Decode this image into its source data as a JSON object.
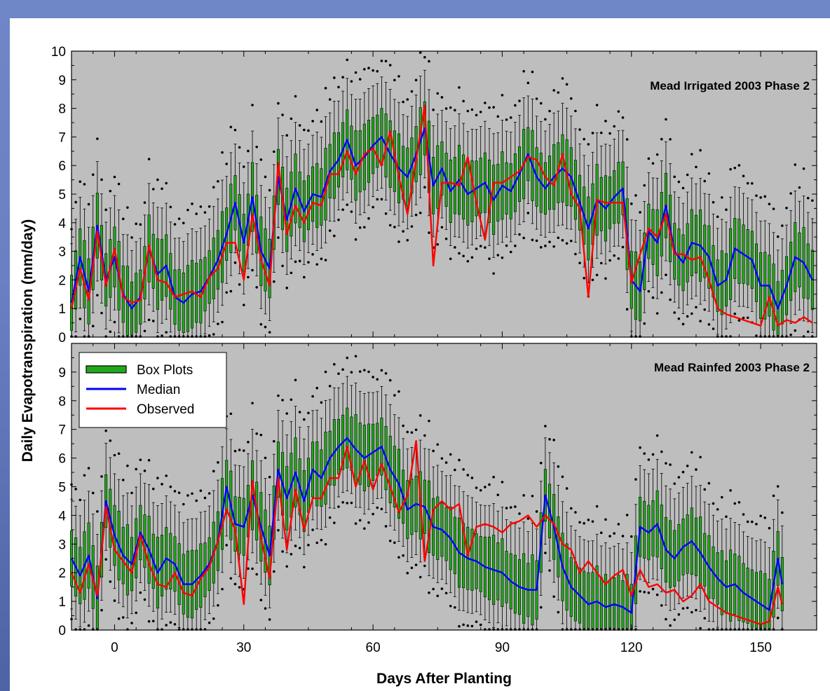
{
  "chart_data": [
    {
      "type": "box",
      "title": "Mead Irrigated 2003 Phase 2",
      "xlabel": "Days After Planting",
      "ylabel": "Daily Evapotranspiration (mm/day)",
      "xlim": [
        -10,
        163
      ],
      "ylim": [
        0,
        10
      ],
      "x_ticks": [
        0,
        30,
        60,
        90,
        120,
        150
      ],
      "y_ticks": [
        0,
        1,
        2,
        3,
        4,
        5,
        6,
        7,
        8,
        9,
        10
      ],
      "grid": false,
      "background": "#bebebe",
      "series": [
        {
          "name": "Box Plots",
          "color": "#22a81c",
          "style": "box"
        },
        {
          "name": "Median",
          "color": "#0000ff",
          "x": [
            -10,
            -8,
            -6,
            -4,
            -2,
            0,
            2,
            4,
            6,
            8,
            10,
            12,
            14,
            16,
            18,
            20,
            22,
            24,
            26,
            28,
            30,
            32,
            34,
            36,
            38,
            40,
            42,
            44,
            46,
            48,
            50,
            52,
            54,
            56,
            58,
            60,
            62,
            64,
            66,
            68,
            70,
            72,
            74,
            76,
            78,
            80,
            82,
            84,
            86,
            88,
            90,
            92,
            94,
            96,
            98,
            100,
            102,
            104,
            106,
            108,
            110,
            112,
            114,
            116,
            118,
            120,
            122,
            124,
            126,
            128,
            130,
            132,
            134,
            136,
            138,
            140,
            142,
            144,
            146,
            148,
            150,
            152,
            154,
            156,
            158,
            160,
            162
          ],
          "values": [
            1.2,
            2.8,
            1.6,
            3.9,
            2.0,
            2.8,
            1.5,
            1.0,
            1.4,
            3.1,
            2.2,
            2.5,
            1.4,
            1.2,
            1.5,
            1.6,
            2.1,
            2.7,
            3.6,
            4.7,
            3.3,
            4.9,
            3.0,
            2.4,
            5.6,
            4.1,
            5.2,
            4.4,
            5.0,
            4.9,
            5.8,
            6.2,
            6.9,
            6.0,
            6.3,
            6.7,
            7.0,
            6.4,
            5.9,
            5.6,
            6.4,
            7.3,
            5.3,
            5.9,
            5.1,
            5.5,
            5.0,
            5.2,
            5.4,
            4.8,
            5.3,
            5.1,
            5.7,
            6.4,
            5.6,
            5.2,
            5.6,
            5.9,
            5.6,
            4.7,
            3.8,
            4.8,
            4.5,
            4.9,
            5.2,
            2.0,
            1.6,
            3.7,
            3.3,
            4.6,
            3.0,
            2.6,
            3.3,
            3.2,
            2.8,
            1.8,
            2.0,
            3.1,
            2.9,
            2.7,
            1.8,
            1.8,
            1.0,
            1.8,
            2.8,
            2.6,
            2.0
          ]
        },
        {
          "name": "Observed",
          "color": "#ff0000",
          "x": [
            -10,
            -8,
            -6,
            -4,
            -2,
            0,
            2,
            4,
            6,
            8,
            10,
            12,
            14,
            16,
            18,
            20,
            22,
            24,
            26,
            28,
            30,
            32,
            34,
            36,
            38,
            40,
            42,
            44,
            46,
            48,
            50,
            52,
            54,
            56,
            58,
            60,
            62,
            64,
            66,
            68,
            70,
            72,
            74,
            76,
            78,
            80,
            82,
            84,
            86,
            88,
            90,
            92,
            94,
            96,
            98,
            100,
            102,
            104,
            106,
            108,
            110,
            112,
            114,
            116,
            118,
            120,
            122,
            124,
            126,
            128,
            130,
            132,
            134,
            136,
            138,
            140,
            142,
            144,
            146,
            148,
            150,
            152,
            154,
            156,
            158,
            160,
            162
          ],
          "values": [
            1.0,
            2.4,
            1.3,
            3.7,
            1.8,
            3.1,
            1.4,
            1.2,
            1.3,
            3.2,
            2.0,
            1.9,
            1.4,
            1.5,
            1.6,
            1.4,
            2.1,
            2.4,
            3.3,
            3.3,
            2.0,
            4.3,
            2.7,
            1.8,
            6.1,
            3.6,
            4.6,
            4.0,
            4.7,
            4.6,
            5.7,
            5.7,
            6.5,
            5.7,
            6.4,
            6.6,
            6.0,
            7.2,
            5.6,
            4.3,
            6.2,
            8.1,
            2.5,
            5.4,
            5.4,
            5.3,
            6.3,
            4.7,
            3.4,
            5.4,
            5.4,
            5.6,
            5.8,
            6.3,
            6.2,
            5.6,
            5.3,
            6.4,
            5.0,
            4.5,
            1.4,
            4.8,
            4.7,
            4.7,
            4.7,
            1.9,
            2.9,
            3.8,
            3.5,
            4.3,
            2.9,
            2.9,
            2.7,
            2.8,
            2.0,
            1.0,
            0.8,
            0.7,
            0.6,
            0.5,
            0.4,
            1.4,
            0.4,
            0.6,
            0.5,
            0.7,
            0.5
          ]
        }
      ]
    },
    {
      "type": "box",
      "title": "Mead Rainfed 2003 Phase 2",
      "xlabel": "Days After Planting",
      "ylabel": "Daily Evapotranspiration (mm/day)",
      "xlim": [
        -10,
        163
      ],
      "ylim": [
        0,
        10
      ],
      "x_ticks": [
        0,
        30,
        60,
        90,
        120,
        150
      ],
      "y_ticks": [
        0,
        1,
        2,
        3,
        4,
        5,
        6,
        7,
        8,
        9
      ],
      "grid": false,
      "legend_position": "top-left",
      "background": "#bebebe",
      "series": [
        {
          "name": "Box Plots",
          "color": "#22a81c",
          "style": "box"
        },
        {
          "name": "Median",
          "color": "#0000ff",
          "x": [
            -10,
            -8,
            -6,
            -4,
            -2,
            0,
            2,
            4,
            6,
            8,
            10,
            12,
            14,
            16,
            18,
            20,
            22,
            24,
            26,
            28,
            30,
            32,
            34,
            36,
            38,
            40,
            42,
            44,
            46,
            48,
            50,
            52,
            54,
            56,
            58,
            60,
            62,
            64,
            66,
            68,
            70,
            72,
            74,
            76,
            78,
            80,
            82,
            84,
            86,
            88,
            90,
            92,
            94,
            96,
            98,
            100,
            102,
            104,
            106,
            108,
            110,
            112,
            114,
            116,
            118,
            120,
            122,
            124,
            126,
            128,
            130,
            132,
            134,
            136,
            138,
            140,
            142,
            144,
            146,
            148,
            150,
            152,
            154,
            155
          ],
          "values": [
            2.5,
            1.9,
            2.6,
            1.1,
            4.5,
            3.3,
            2.6,
            2.3,
            3.4,
            2.8,
            2.0,
            2.5,
            2.3,
            1.6,
            1.6,
            1.9,
            2.3,
            3.1,
            5.0,
            3.7,
            3.6,
            4.7,
            3.6,
            2.6,
            5.6,
            4.6,
            5.5,
            4.5,
            5.6,
            5.3,
            6.0,
            6.4,
            6.7,
            6.3,
            6.0,
            6.2,
            6.4,
            5.6,
            5.1,
            4.2,
            4.4,
            4.3,
            3.6,
            3.5,
            3.2,
            2.7,
            2.5,
            2.4,
            2.2,
            2.1,
            2.0,
            1.7,
            1.5,
            1.4,
            1.4,
            4.7,
            3.6,
            2.2,
            1.5,
            1.2,
            0.9,
            1.0,
            0.8,
            0.9,
            0.8,
            0.6,
            3.6,
            3.4,
            3.7,
            2.8,
            2.5,
            2.9,
            3.1,
            2.7,
            2.2,
            1.8,
            1.5,
            1.6,
            1.3,
            1.1,
            0.9,
            0.7,
            2.5,
            1.6
          ]
        },
        {
          "name": "Observed",
          "color": "#ff0000",
          "x": [
            -10,
            -8,
            -6,
            -4,
            -2,
            0,
            2,
            4,
            6,
            8,
            10,
            12,
            14,
            16,
            18,
            20,
            22,
            24,
            26,
            28,
            30,
            32,
            34,
            36,
            38,
            40,
            42,
            44,
            46,
            48,
            50,
            52,
            54,
            56,
            58,
            60,
            62,
            64,
            66,
            68,
            70,
            72,
            74,
            76,
            78,
            80,
            82,
            84,
            86,
            88,
            90,
            92,
            94,
            96,
            98,
            100,
            102,
            104,
            106,
            108,
            110,
            112,
            114,
            116,
            118,
            120,
            122,
            124,
            126,
            128,
            130,
            132,
            134,
            136,
            138,
            140,
            142,
            144,
            146,
            148,
            150,
            152,
            154,
            155
          ],
          "values": [
            2.0,
            1.3,
            2.3,
            1.2,
            4.3,
            2.8,
            2.4,
            2.0,
            3.3,
            2.3,
            1.6,
            1.5,
            2.0,
            1.3,
            1.2,
            1.8,
            2.2,
            3.1,
            4.2,
            3.5,
            0.9,
            5.2,
            3.2,
            1.8,
            5.3,
            2.8,
            4.9,
            3.5,
            4.6,
            4.6,
            5.3,
            5.3,
            6.4,
            5.0,
            5.9,
            4.9,
            5.8,
            5.0,
            4.1,
            4.7,
            6.6,
            2.4,
            4.2,
            4.5,
            4.2,
            4.4,
            2.6,
            3.6,
            3.7,
            3.6,
            3.4,
            3.7,
            3.8,
            4.0,
            3.6,
            4.0,
            3.7,
            3.0,
            2.8,
            2.0,
            2.4,
            2.0,
            1.6,
            1.9,
            2.1,
            1.2,
            2.1,
            1.5,
            1.6,
            1.3,
            1.4,
            1.0,
            1.2,
            1.6,
            1.0,
            0.8,
            0.6,
            0.5,
            0.4,
            0.3,
            0.2,
            0.3,
            1.5,
            0.9
          ]
        }
      ]
    }
  ]
}
